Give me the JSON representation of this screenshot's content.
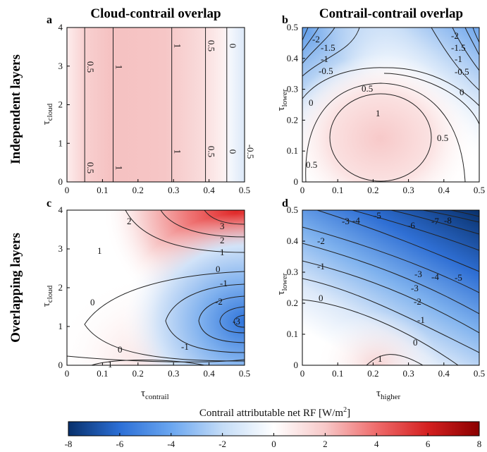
{
  "column_titles": [
    "Cloud-contrail overlap",
    "Contrail-contrail overlap"
  ],
  "row_titles": [
    "Independent layers",
    "Overlapping layers"
  ],
  "colorbar": {
    "label": "Contrail attributable net RF [W/m",
    "label_sup": "2",
    "label_end": "]",
    "ticks": [
      "-8",
      "-6",
      "-4",
      "-2",
      "0",
      "2",
      "4",
      "6",
      "8"
    ],
    "colors": [
      "#08306b",
      "#2c6fd6",
      "#6aa6f0",
      "#c4dcf7",
      "#ffffff",
      "#f7c8c8",
      "#ef6b6b",
      "#d42020",
      "#8b0000"
    ]
  },
  "chart_data": [
    {
      "panel": "a",
      "type": "heatmap",
      "x_axis": {
        "label": "",
        "ticks": [
          "0",
          "0.1",
          "0.2",
          "0.3",
          "0.4",
          "0.5"
        ],
        "range": [
          0,
          0.5
        ]
      },
      "y_axis": {
        "label": "τ",
        "sub": "cloud",
        "ticks": [
          "0",
          "1",
          "2",
          "3",
          "4"
        ],
        "range": [
          0,
          4
        ]
      },
      "x_grid": [
        0,
        0.05,
        0.1,
        0.13,
        0.2,
        0.25,
        0.3,
        0.35,
        0.39,
        0.42,
        0.45,
        0.48,
        0.5
      ],
      "z_of_x": [
        -0.1,
        0.5,
        0.9,
        1.0,
        1.1,
        1.1,
        1.0,
        0.8,
        0.5,
        0.2,
        0.0,
        -0.3,
        -0.5
      ],
      "contours": [
        {
          "level": "0.5",
          "x": 0.05
        },
        {
          "level": "1",
          "x": 0.13
        },
        {
          "level": "1",
          "x": 0.295
        },
        {
          "level": "0.5",
          "x": 0.39
        },
        {
          "level": "0",
          "x": 0.45
        },
        {
          "level": "-0.5",
          "x": 0.5
        }
      ]
    },
    {
      "panel": "b",
      "type": "heatmap",
      "x_axis": {
        "label": "",
        "ticks": [
          "0",
          "0.1",
          "0.2",
          "0.3",
          "0.4",
          "0.5"
        ],
        "range": [
          0,
          0.5
        ]
      },
      "y_axis": {
        "label": "τ",
        "sub": "lower",
        "ticks": [
          "0",
          "0.1",
          "0.2",
          "0.3",
          "0.4",
          "0.5"
        ],
        "range": [
          0,
          0.5
        ]
      },
      "contour_labels": [
        "-2",
        "-1.5",
        "-1",
        "-0.5",
        "0",
        "0.5",
        "1",
        "-2",
        "-1.5",
        "-1",
        "-0.5",
        "0",
        "0.5",
        "0.5"
      ]
    },
    {
      "panel": "c",
      "type": "heatmap",
      "x_axis": {
        "label": "τ",
        "sub": "contrail",
        "ticks": [
          "0",
          "0.1",
          "0.2",
          "0.3",
          "0.4",
          "0.5"
        ],
        "range": [
          0,
          0.5
        ]
      },
      "y_axis": {
        "label": "τ",
        "sub": "cloud",
        "ticks": [
          "0",
          "1",
          "2",
          "3",
          "4"
        ],
        "range": [
          0,
          4
        ]
      },
      "contour_labels": [
        "2",
        "3",
        "2",
        "1",
        "1",
        "0",
        "-1",
        "-2",
        "-3",
        "0",
        "0",
        "-1",
        "1"
      ]
    },
    {
      "panel": "d",
      "type": "heatmap",
      "x_axis": {
        "label": "τ",
        "sub": "higher",
        "ticks": [
          "0",
          "0.1",
          "0.2",
          "0.3",
          "0.4",
          "0.5"
        ],
        "range": [
          0,
          0.5
        ]
      },
      "y_axis": {
        "label": "τ",
        "sub": "lower",
        "ticks": [
          "0",
          "0.1",
          "0.2",
          "0.3",
          "0.4",
          "0.5"
        ],
        "range": [
          0,
          0.5
        ]
      },
      "contour_labels": [
        "-3",
        "-4",
        "-5",
        "-6",
        "-7",
        "-8",
        "-2",
        "-1",
        "0",
        "-3",
        "-4",
        "-5",
        "-3",
        "-2",
        "-1",
        "0",
        "1"
      ]
    }
  ]
}
